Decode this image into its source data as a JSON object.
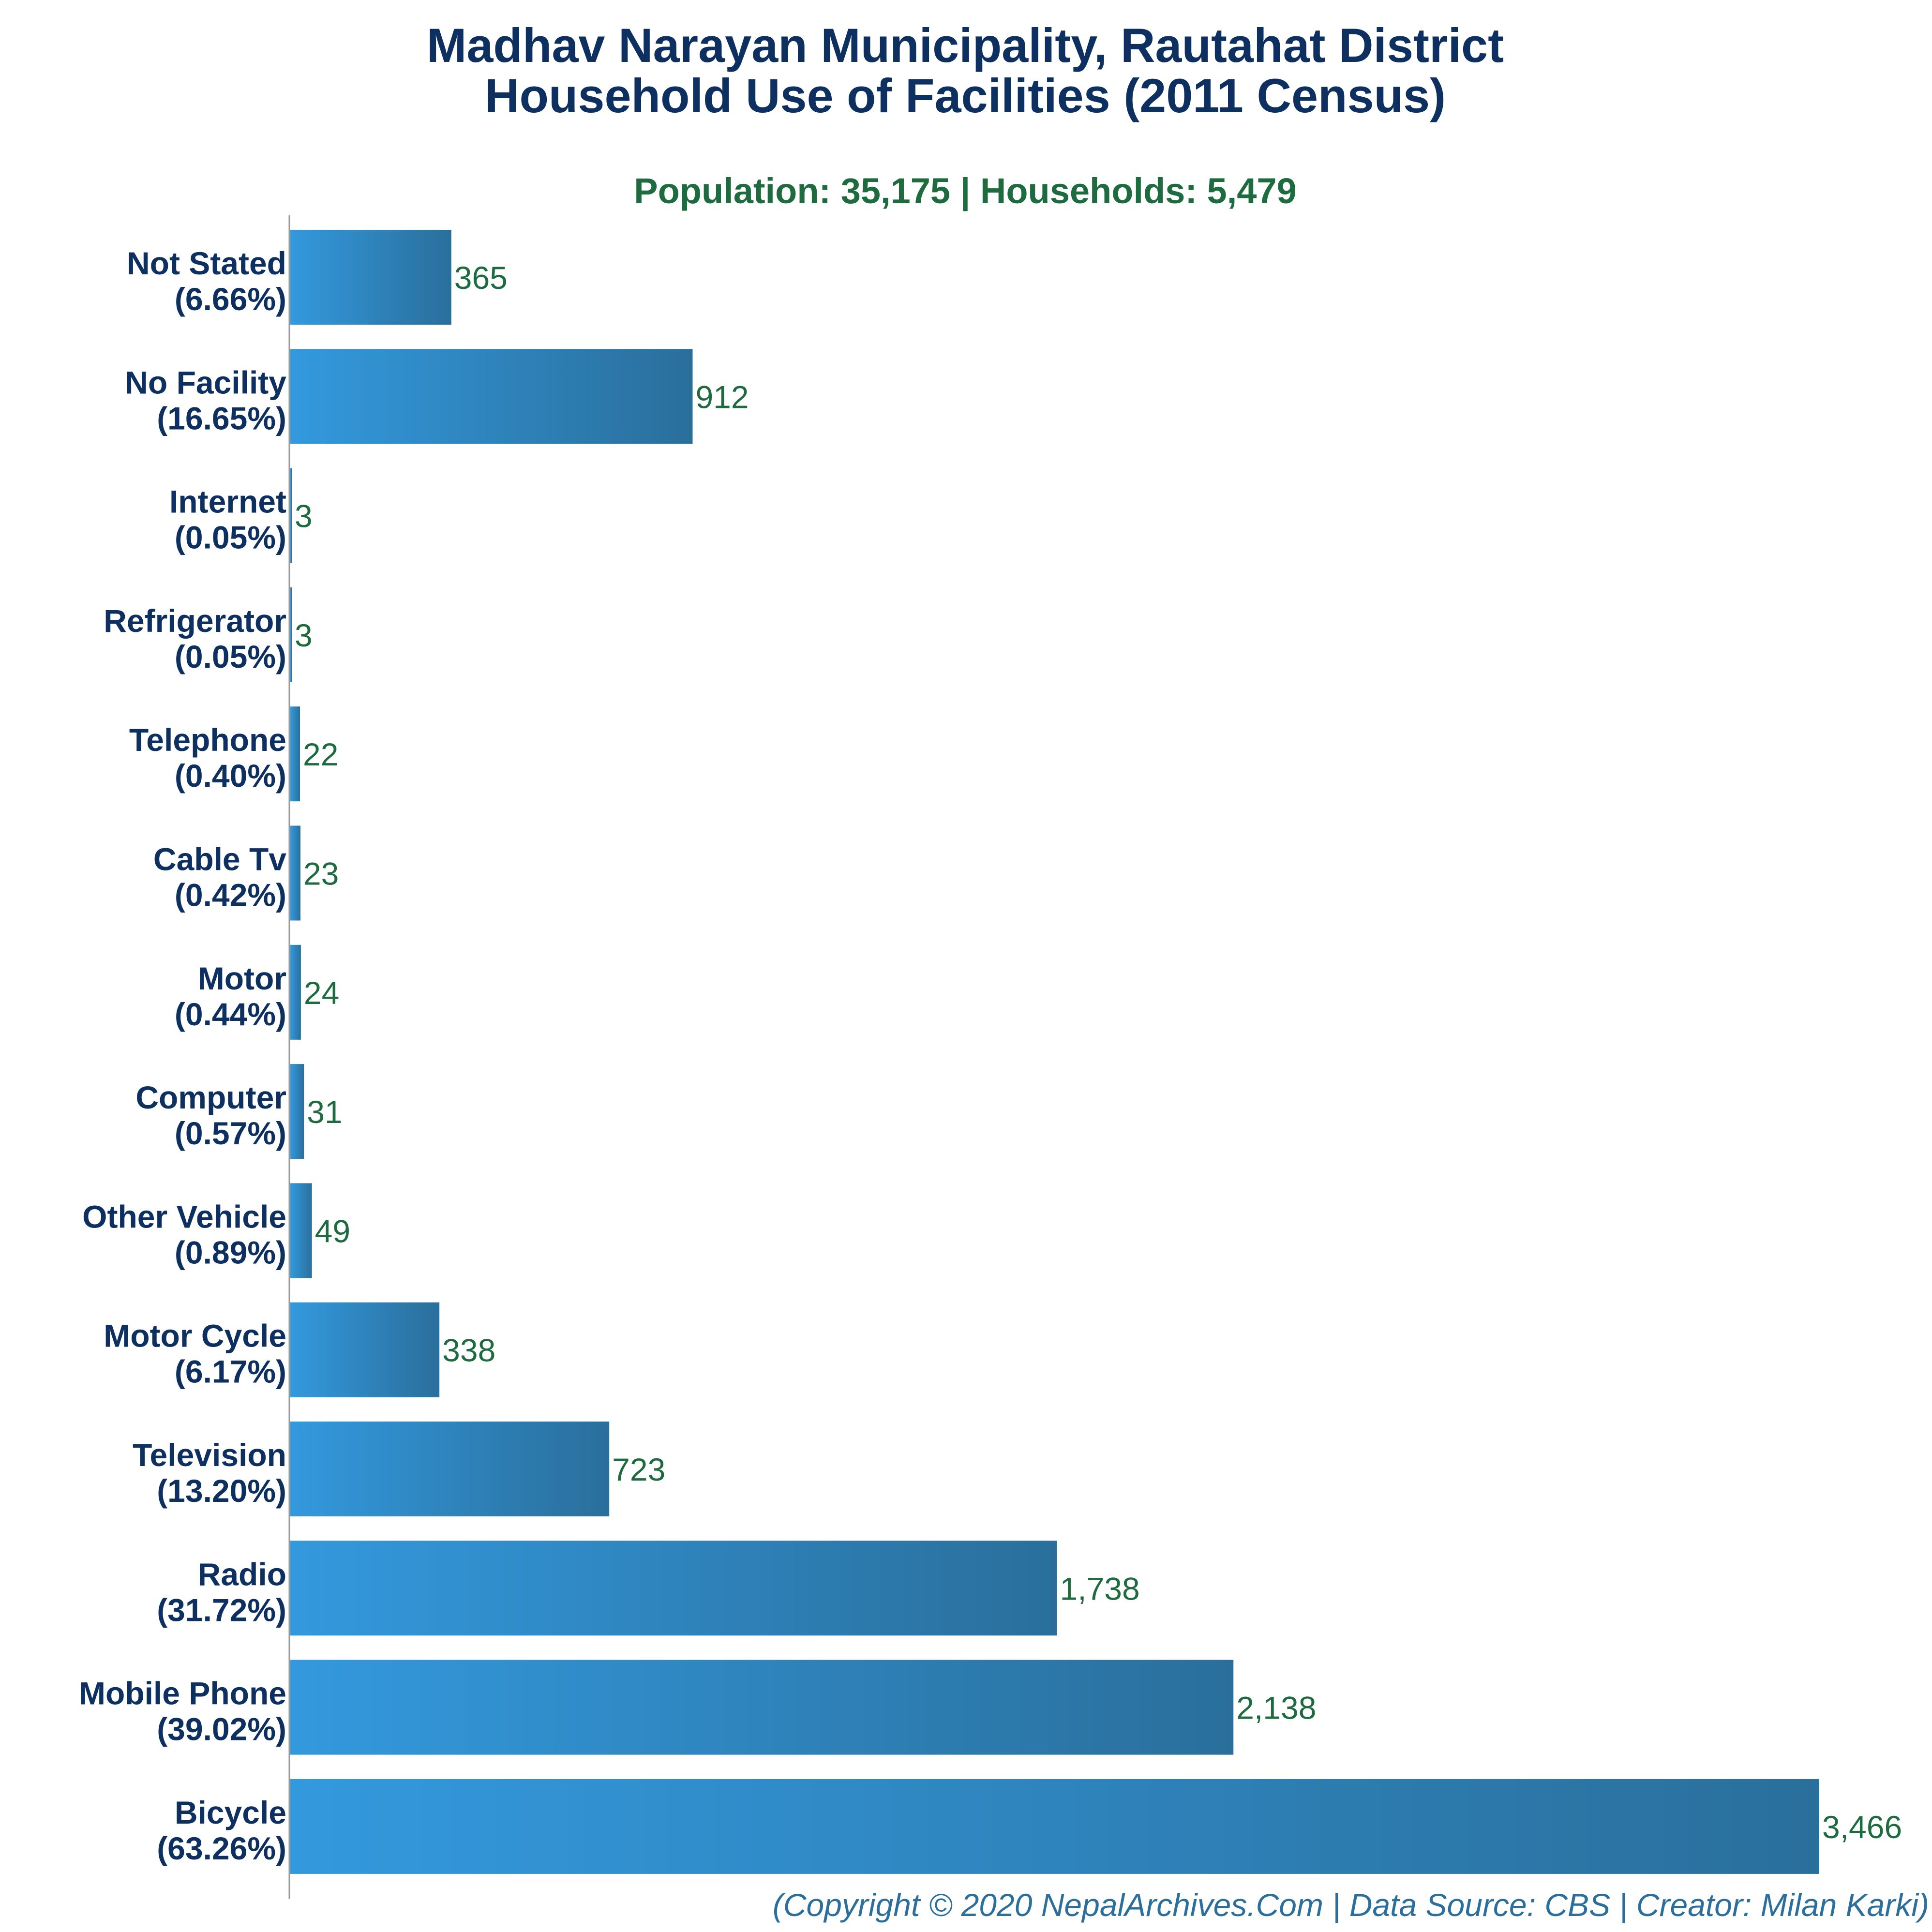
{
  "chart_data": {
    "type": "bar",
    "orientation": "horizontal",
    "title_lines": [
      "Madhav Narayan Municipality, Rautahat District",
      "Household Use of Facilities (2011 Census)"
    ],
    "subtitle": "Population: 35,175 | Households: 5,479",
    "footer": "(Copyright © 2020 NepalArchives.Com | Data Source: CBS | Creator: Milan Karki)",
    "categories": [
      "Not Stated",
      "No Facility",
      "Internet",
      "Refrigerator",
      "Telephone",
      "Cable Tv",
      "Motor",
      "Computer",
      "Other Vehicle",
      "Motor Cycle",
      "Television",
      "Radio",
      "Mobile Phone",
      "Bicycle"
    ],
    "percent_labels": [
      "(6.66%)",
      "(16.65%)",
      "(0.05%)",
      "(0.05%)",
      "(0.40%)",
      "(0.42%)",
      "(0.44%)",
      "(0.57%)",
      "(0.89%)",
      "(6.17%)",
      "(13.20%)",
      "(31.72%)",
      "(39.02%)",
      "(63.26%)"
    ],
    "values": [
      365,
      912,
      3,
      3,
      22,
      23,
      24,
      31,
      49,
      338,
      723,
      1738,
      2138,
      3466
    ],
    "value_labels": [
      "365",
      "912",
      "3",
      "3",
      "22",
      "23",
      "24",
      "31",
      "49",
      "338",
      "723",
      "1,738",
      "2,138",
      "3,466"
    ],
    "xlim": [
      0,
      3466
    ],
    "grid": false,
    "colors": {
      "bar_start": "#3399dd",
      "bar_end": "#2a6f9c",
      "title": "#0d3060",
      "subtitle": "#1f6b40",
      "value_label": "#1f6b40",
      "axis": "#999999",
      "footer": "#2c6e9c"
    }
  }
}
